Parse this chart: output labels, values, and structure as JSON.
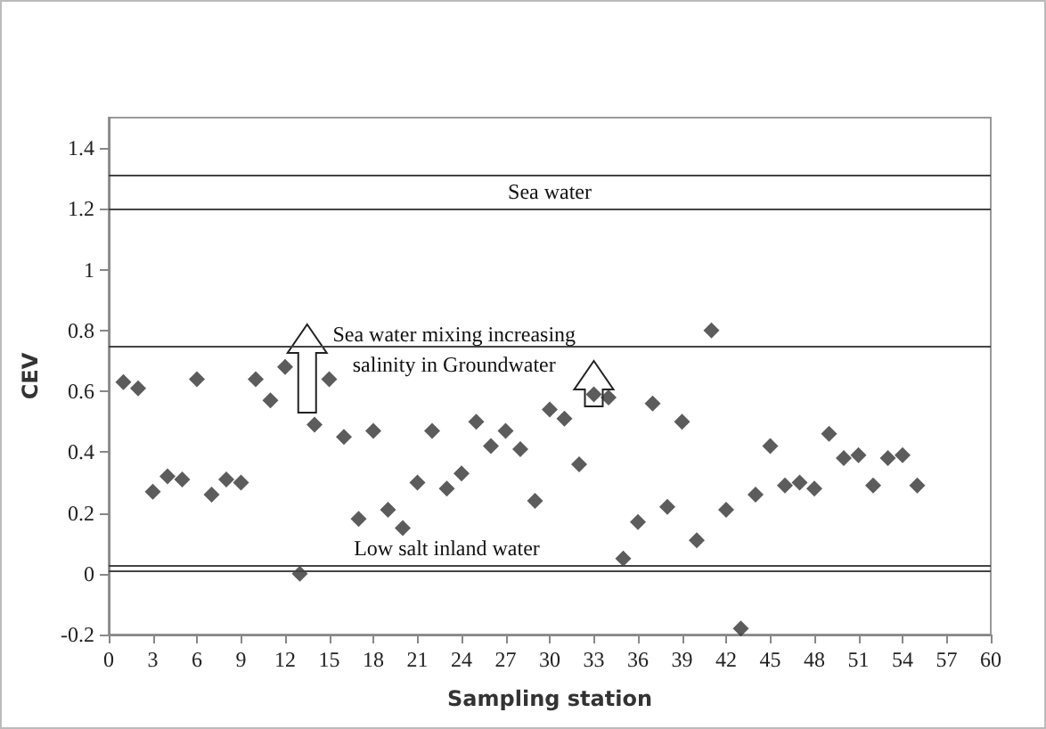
{
  "chart_data": {
    "type": "scatter",
    "xlabel": "Sampling station",
    "ylabel": "CEV",
    "x": [
      1,
      2,
      3,
      4,
      5,
      6,
      7,
      8,
      9,
      10,
      11,
      12,
      13,
      14,
      15,
      16,
      17,
      18,
      19,
      20,
      21,
      22,
      23,
      24,
      25,
      26,
      27,
      28,
      29,
      30,
      31,
      32,
      33,
      34,
      35,
      36,
      37,
      38,
      39,
      40,
      41,
      42,
      43,
      44,
      45,
      46,
      47,
      48,
      49,
      50,
      51,
      52,
      53,
      54,
      55
    ],
    "series": [
      {
        "color": "#333333",
        "values": [
          0.63,
          0.61,
          0.27,
          0.32,
          0.31,
          0.64,
          0.26,
          0.31,
          0.3,
          0.64,
          0.57,
          0.68,
          0.0,
          0.49,
          0.64,
          0.45,
          0.18,
          0.47,
          0.21,
          0.15,
          0.3,
          0.47,
          0.28,
          0.33,
          0.5,
          0.42,
          0.47,
          0.41,
          0.24,
          0.54,
          0.51,
          0.36,
          0.59,
          0.58,
          0.05,
          0.17,
          0.56,
          0.22,
          0.5,
          0.11,
          0.8,
          0.21,
          -0.18,
          0.26,
          0.42,
          0.29,
          0.3,
          0.28,
          0.46,
          0.38,
          0.39,
          0.29,
          0.38,
          0.39,
          0.29
        ]
      }
    ],
    "xlim": [
      0,
      60
    ],
    "xticks": [
      0,
      3,
      6,
      9,
      12,
      15,
      18,
      21,
      24,
      27,
      30,
      33,
      36,
      39,
      42,
      45,
      48,
      51,
      54,
      57,
      60
    ],
    "ylim": [
      -0.2,
      1.5
    ],
    "yticks": [
      -0.2,
      0,
      0.2,
      0.4,
      0.6,
      0.8,
      1,
      1.2,
      1.4
    ],
    "ref_lines": [
      {
        "axis": "y",
        "value": 1.31,
        "color": "#444444"
      },
      {
        "axis": "y",
        "value": 1.2,
        "color": "#444444",
        "label": "Sea water"
      },
      {
        "axis": "y",
        "value": 0.75,
        "color": "#444444",
        "label": "Sea water mixing increasing\nsalinity in Groundwater"
      },
      {
        "axis": "y",
        "value": 0.03,
        "color": "#444444",
        "label": "Low salt inland water"
      },
      {
        "axis": "y",
        "value": 0.01,
        "color": "#444444"
      }
    ],
    "marker": "diamond",
    "grid": false
  }
}
